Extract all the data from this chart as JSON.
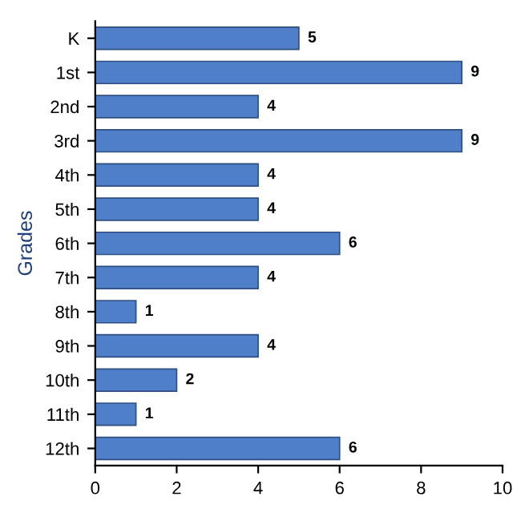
{
  "chart_data": {
    "type": "bar",
    "orientation": "horizontal",
    "ylabel": "Grades",
    "categories": [
      "K",
      "1st",
      "2nd",
      "3rd",
      "4th",
      "5th",
      "6th",
      "7th",
      "8th",
      "9th",
      "10th",
      "11th",
      "12th"
    ],
    "values": [
      5,
      9,
      4,
      9,
      4,
      4,
      6,
      4,
      1,
      4,
      2,
      1,
      6
    ],
    "color": "#4f7fc8",
    "xlim": [
      0,
      10
    ],
    "xticks": [
      0,
      2,
      4,
      6,
      8,
      10
    ],
    "data_labels": true,
    "grid": false,
    "legend": false
  }
}
